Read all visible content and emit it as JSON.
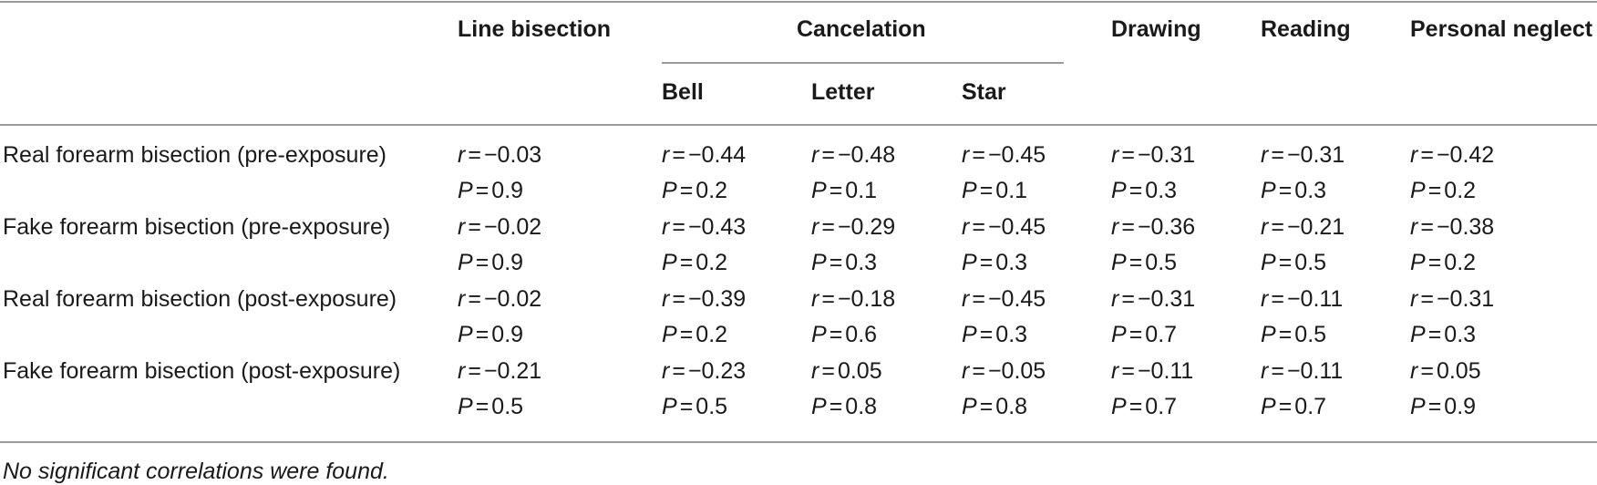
{
  "header": {
    "group_cancelation": "Cancelation",
    "columns": [
      "Line bisection",
      "Bell",
      "Letter",
      "Star",
      "Drawing",
      "Reading",
      "Personal neglect"
    ]
  },
  "rows": [
    {
      "label": "Real forearm bisection (pre-exposure)",
      "r": [
        "−0.03",
        "−0.44",
        "−0.48",
        "−0.45",
        "−0.31",
        "−0.31",
        "−0.42"
      ],
      "p": [
        "0.9",
        "0.2",
        "0.1",
        "0.1",
        "0.3",
        "0.3",
        "0.2"
      ]
    },
    {
      "label": "Fake forearm bisection (pre-exposure)",
      "r": [
        "−0.02",
        "−0.43",
        "−0.29",
        "−0.45",
        "−0.36",
        "−0.21",
        "−0.38"
      ],
      "p": [
        "0.9",
        "0.2",
        "0.3",
        "0.3",
        "0.5",
        "0.5",
        "0.2"
      ]
    },
    {
      "label": "Real forearm bisection (post-exposure)",
      "r": [
        "−0.02",
        "−0.39",
        "−0.18",
        "−0.45",
        "−0.31",
        "−0.11",
        "−0.31"
      ],
      "p": [
        "0.9",
        "0.2",
        "0.6",
        "0.3",
        "0.7",
        "0.5",
        "0.3"
      ]
    },
    {
      "label": "Fake forearm bisection (post-exposure)",
      "r": [
        "−0.21",
        "−0.23",
        "0.05",
        "−0.05",
        "−0.11",
        "−0.11",
        "0.05"
      ],
      "p": [
        "0.5",
        "0.5",
        "0.8",
        "0.8",
        "0.7",
        "0.7",
        "0.9"
      ]
    }
  ],
  "symbols": {
    "r": "r",
    "p": "P",
    "eq": "="
  },
  "footnote": "No significant correlations were found."
}
